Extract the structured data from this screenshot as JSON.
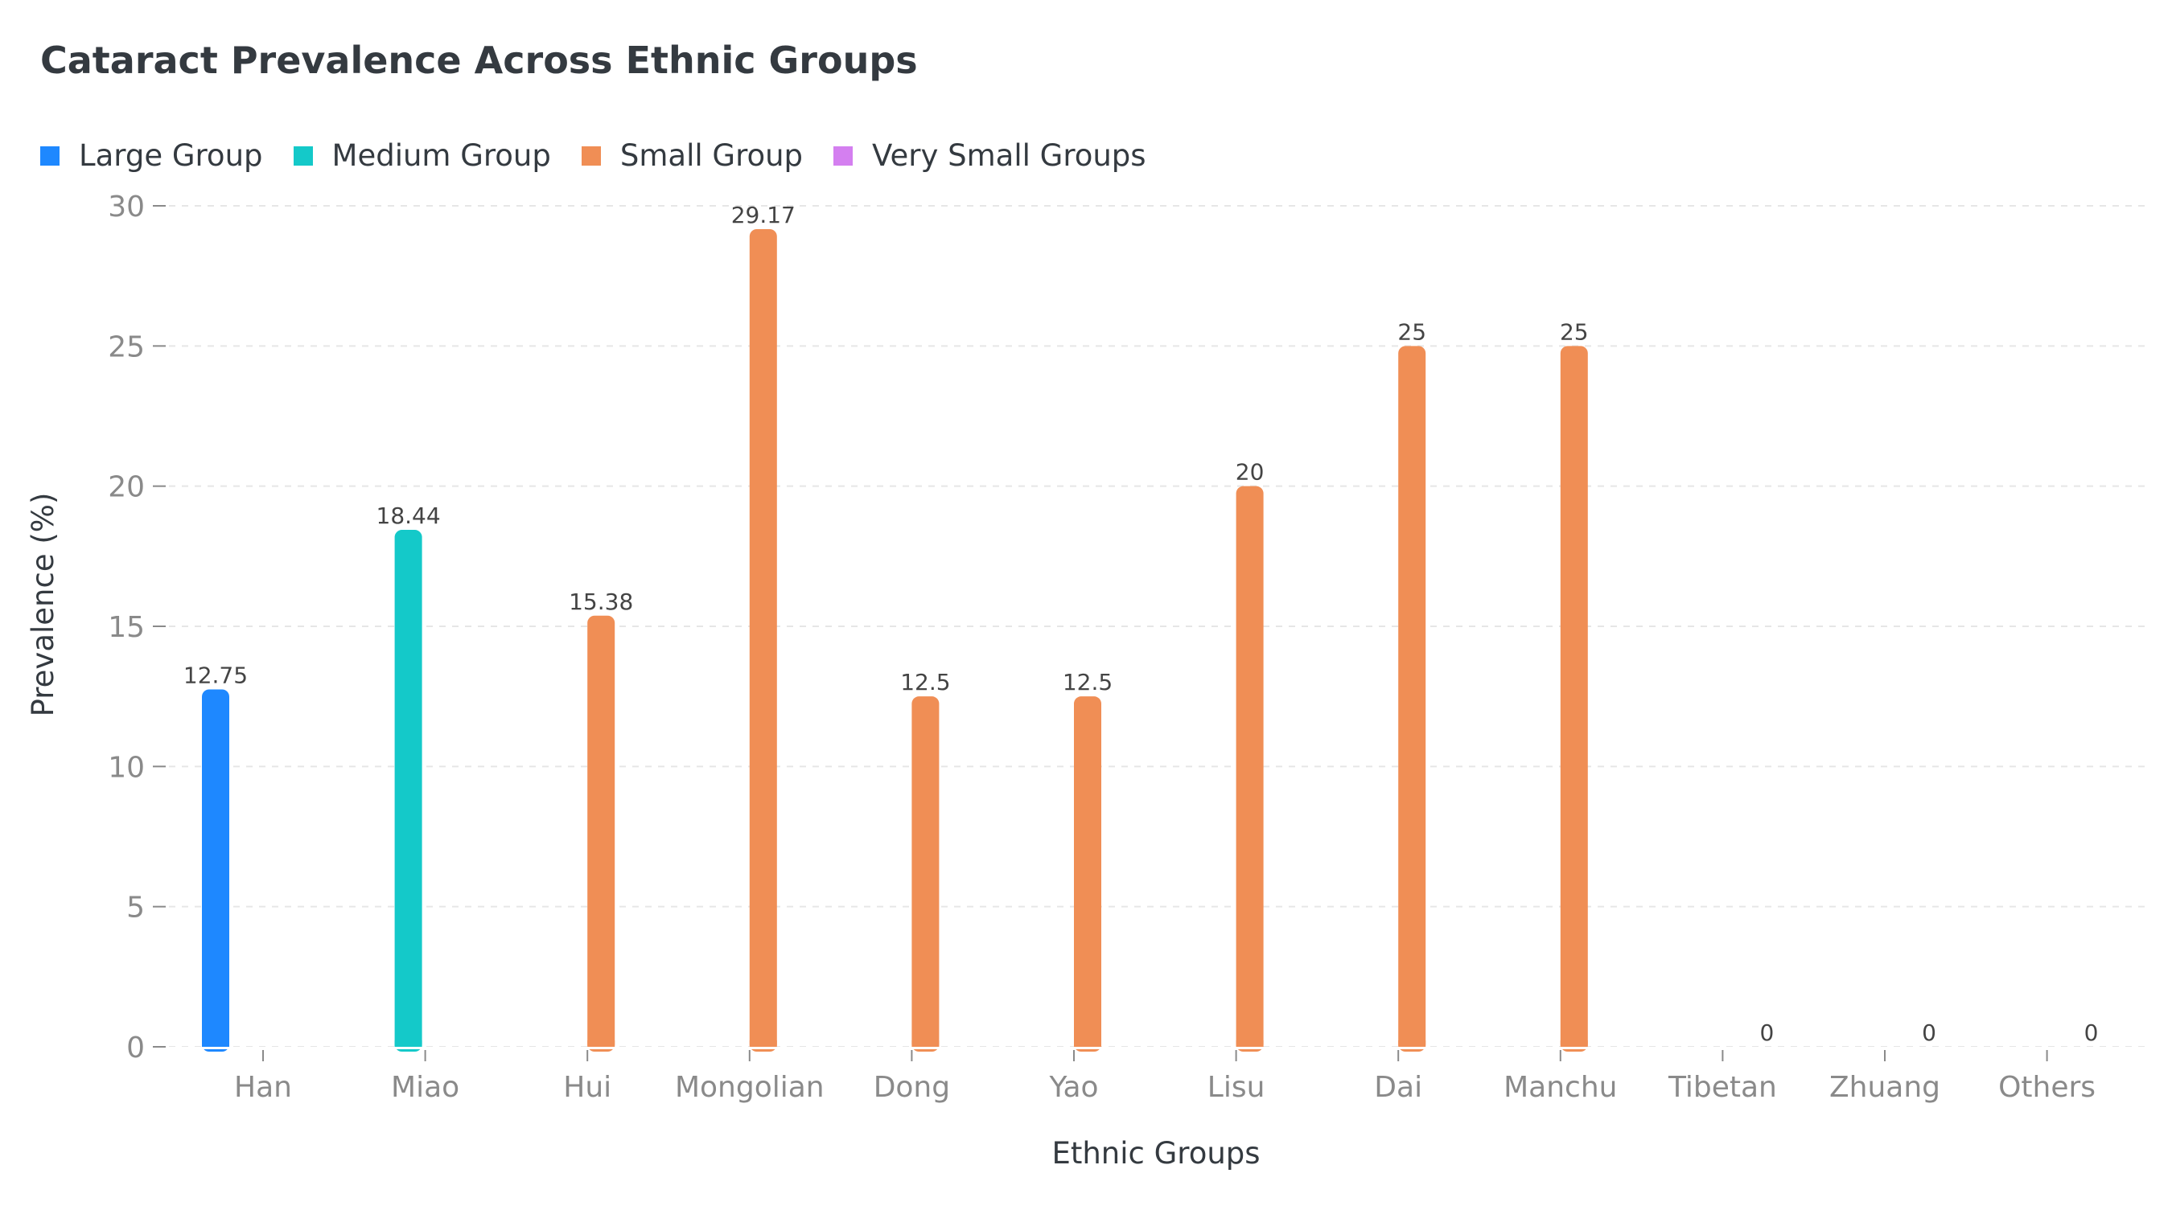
{
  "chart_data": {
    "type": "bar",
    "title": "Cataract Prevalence Across Ethnic Groups",
    "xlabel": "Ethnic Groups",
    "ylabel": "Prevalence (%)",
    "ylim": [
      0,
      30
    ],
    "yticks": [
      0,
      5,
      10,
      15,
      20,
      25,
      30
    ],
    "grid": "horizontal dashed",
    "legend_position": "top-left",
    "categories": [
      "Han",
      "Miao",
      "Hui",
      "Mongolian",
      "Dong",
      "Yao",
      "Lisu",
      "Dai",
      "Manchu",
      "Tibetan",
      "Zhuang",
      "Others"
    ],
    "series": [
      {
        "name": "Large Group",
        "color": "#1e88ff",
        "values": [
          12.75,
          null,
          null,
          null,
          null,
          null,
          null,
          null,
          null,
          null,
          null,
          null
        ]
      },
      {
        "name": "Medium Group",
        "color": "#14c9c9",
        "values": [
          null,
          18.44,
          null,
          null,
          null,
          null,
          null,
          null,
          null,
          null,
          null,
          null
        ]
      },
      {
        "name": "Small Group",
        "color": "#f08e55",
        "values": [
          null,
          null,
          15.38,
          29.17,
          12.5,
          12.5,
          20,
          25,
          25,
          null,
          null,
          null
        ]
      },
      {
        "name": "Very Small Groups",
        "color": "#d47ff0",
        "values": [
          null,
          null,
          null,
          null,
          null,
          null,
          null,
          null,
          null,
          0,
          0,
          0
        ]
      }
    ],
    "data_labels": [
      "12.75",
      "18.44",
      "15.38",
      "29.17",
      "12.5",
      "12.5",
      "20",
      "25",
      "25",
      "0",
      "0",
      "0"
    ]
  }
}
